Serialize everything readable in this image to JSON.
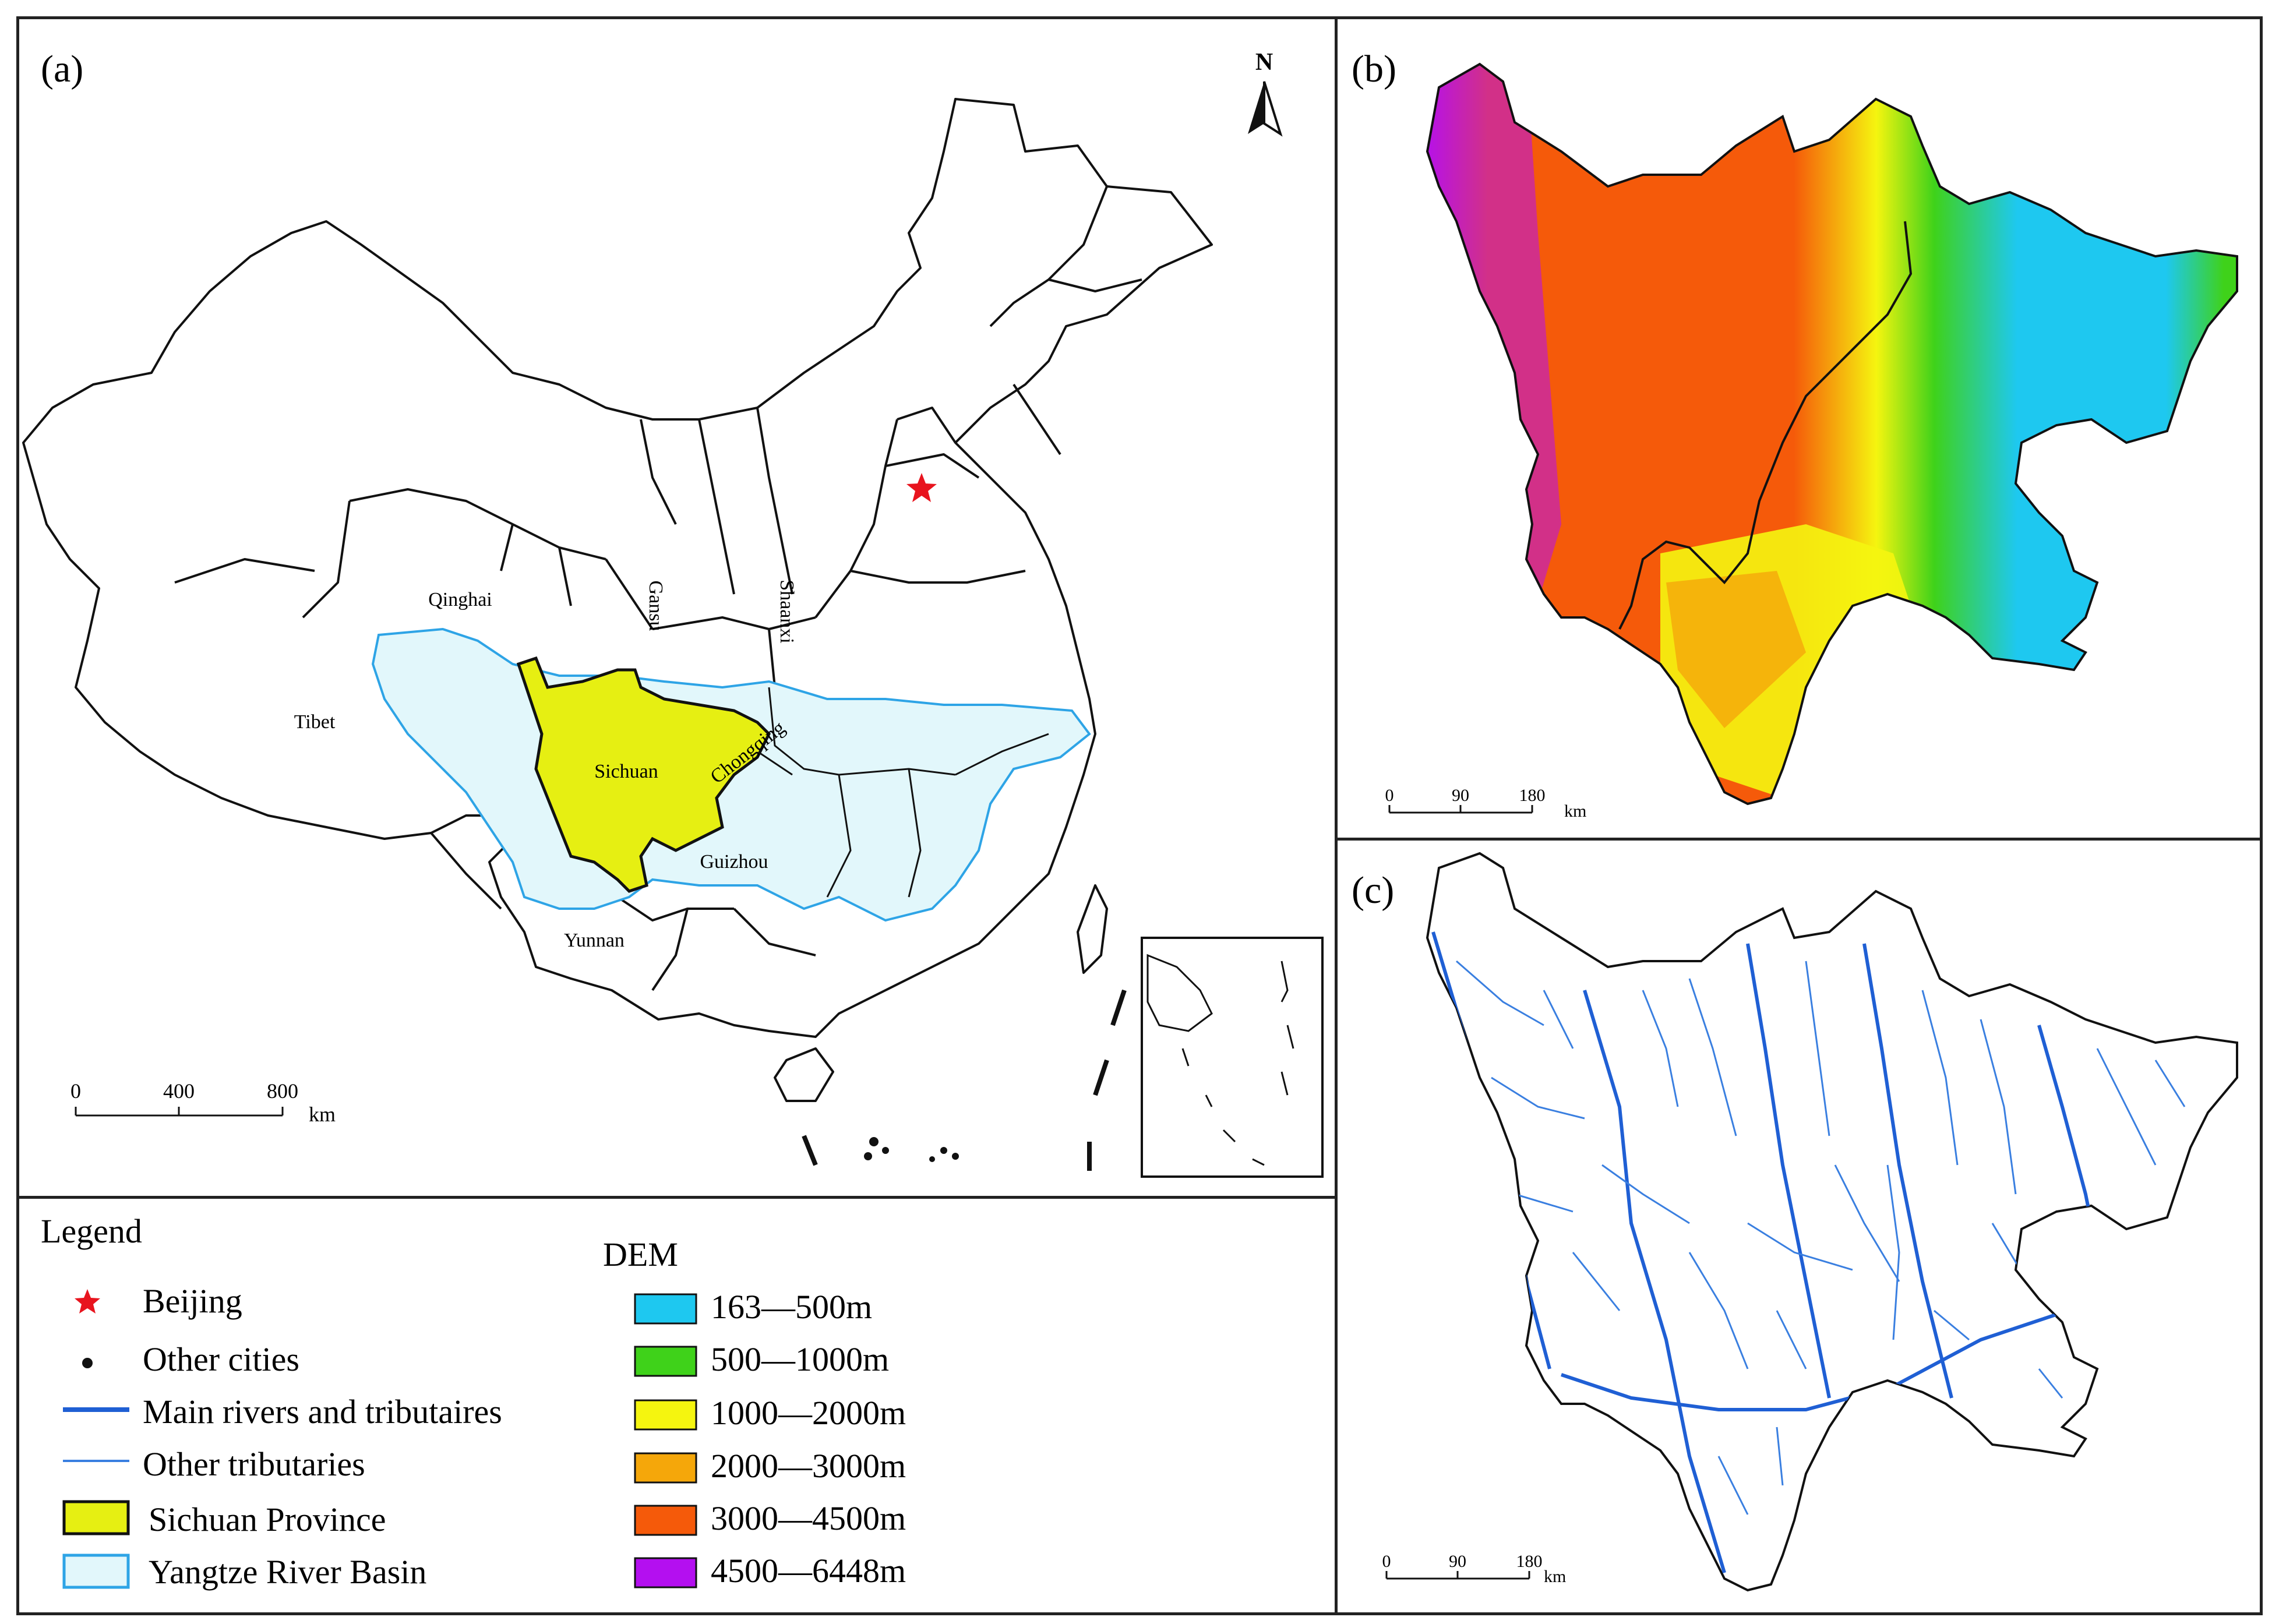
{
  "panels": {
    "a": {
      "label": "(a)"
    },
    "b": {
      "label": "(b)"
    },
    "c": {
      "label": "(c)"
    }
  },
  "north": {
    "label": "N"
  },
  "provinces": {
    "qinghai": "Qinghai",
    "tibet": "Tibet",
    "gansu": "Gansu",
    "shaanxi": "Shaanxi",
    "sichuan": "Sichuan",
    "chongqing": "Chongqing",
    "guizhou": "Guizhou",
    "yunnan": "Yunnan"
  },
  "scalebar_a": {
    "t0": "0",
    "t1": "400",
    "t2": "800",
    "unit": "km"
  },
  "scalebar_b": {
    "t0": "0",
    "t1": "90",
    "t2": "180",
    "unit": "km"
  },
  "scalebar_c": {
    "t0": "0",
    "t1": "90",
    "t2": "180",
    "unit": "km"
  },
  "legend": {
    "title": "Legend",
    "items": [
      {
        "label": "Beijing"
      },
      {
        "label": "Other cities"
      },
      {
        "label": "Main rivers and tributaires"
      },
      {
        "label": "Other tributaries"
      },
      {
        "label": "Sichuan Province"
      },
      {
        "label": "Yangtze River Basin"
      }
    ]
  },
  "dem": {
    "title": "DEM",
    "items": [
      {
        "label": "163—500m",
        "color": "#1ec8f0"
      },
      {
        "label": "500—1000m",
        "color": "#3fd21a"
      },
      {
        "label": "1000—2000m",
        "color": "#f5f50f"
      },
      {
        "label": "2000—3000m",
        "color": "#f5a70a"
      },
      {
        "label": "3000—4500m",
        "color": "#f55a0a"
      },
      {
        "label": "4500—6448m",
        "color": "#b40ff0"
      }
    ]
  },
  "colors": {
    "sichuan_fill": "#e6ef12",
    "basin_fill": "#e2f7fb",
    "basin_stroke": "#2ea4e6",
    "river_main": "#1f5fd4",
    "river_other": "#3a7fe0",
    "beijing_star": "#e8141e"
  }
}
